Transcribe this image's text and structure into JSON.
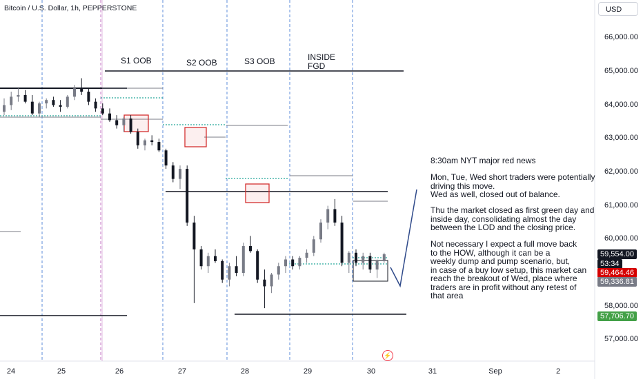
{
  "header": {
    "symbol": "Bitcoin / U.S. Dollar, 1h, PEPPERSTONE",
    "currency": "USD"
  },
  "colors": {
    "up": "#787b86",
    "down": "#131722",
    "accent_red": "#d32f2f",
    "dotted": "#26a69a",
    "vline": "#5b8bd8",
    "session": "#c679c6"
  },
  "price_axis": {
    "ticks": [
      "66,000.00",
      "65,000.00",
      "64,000.00",
      "63,000.00",
      "62,000.00",
      "61,000.00",
      "60,000.00",
      "58,000.00",
      "57,000.00"
    ],
    "tick_values": [
      66000,
      65000,
      64000,
      63000,
      62000,
      61000,
      60000,
      58000,
      57000
    ],
    "tags": [
      {
        "text": "59,554.00",
        "value": 59554,
        "bg": "#131722"
      },
      {
        "text": "53:34",
        "value": 59270,
        "bg": "#131722"
      },
      {
        "text": "59,464.46",
        "value": 59000,
        "bg": "#d50000"
      },
      {
        "text": "59,336.81",
        "value": 58730,
        "bg": "#787b86"
      },
      {
        "text": "57,706.70",
        "value": 57706.7,
        "bg": "#43a047"
      }
    ]
  },
  "time_axis": {
    "labels": [
      "24",
      "25",
      "26",
      "27",
      "28",
      "29",
      "30",
      "31",
      "Sep",
      "2"
    ]
  },
  "annotations": {
    "s1": "S1 OOB",
    "s2": "S2 OOB",
    "s3": "S3 OOB",
    "inside1": "INSIDE",
    "inside2": "FGD"
  },
  "note": {
    "p1": "8:30am NYT major red news",
    "p2": "Mon, Tue, Wed short traders were potentially\ndriving this move.\nWed as well, closed out of balance.",
    "p3": "Thu the market closed as first green day and\ninside day, consolidating almost the day\nbetween the LOD and the closing price.",
    "p4": "Not necessary I expect a full move back\nto the HOW, although it can be a\nweekly dump and pump scenario, but,\nin case of a buy low setup, this market can\nreach the breakout of Wed, place where\ntraders are in profit without any retest of\nthat area"
  },
  "chart_data": {
    "type": "candlestick",
    "title": "Bitcoin / U.S. Dollar, 1h, PEPPERSTONE",
    "ylim": [
      56500,
      67000
    ],
    "x_categories": [
      "24",
      "25",
      "26",
      "27",
      "28",
      "29",
      "30",
      "31",
      "Sep",
      "2"
    ],
    "series": [
      {
        "values": [
          [
            63800,
            64200,
            63700,
            64000
          ],
          [
            64000,
            64400,
            63850,
            64250
          ],
          [
            64250,
            64500,
            64100,
            64300
          ],
          [
            64300,
            64450,
            64050,
            64100
          ],
          [
            64100,
            64300,
            63700,
            63750
          ],
          [
            63750,
            64100,
            63650,
            64050
          ],
          [
            64050,
            64200,
            63900,
            64150
          ],
          [
            64150,
            64250,
            63950,
            64000
          ],
          [
            64000,
            64150,
            63800,
            63950
          ],
          [
            63950,
            64300,
            63900,
            64250
          ],
          [
            64250,
            64600,
            64150,
            64500
          ],
          [
            64500,
            64800,
            64300,
            64400
          ],
          [
            64400,
            64500,
            64000,
            64100
          ],
          [
            64100,
            64200,
            63800,
            63900
          ],
          [
            63900,
            64050,
            63700,
            63750
          ],
          [
            63750,
            63900,
            63500,
            63550
          ],
          [
            63550,
            63700,
            63300,
            63400
          ],
          [
            63400,
            63650,
            63200,
            63600
          ],
          [
            63600,
            63700,
            63150,
            63200
          ],
          [
            63200,
            63300,
            62700,
            62800
          ],
          [
            62800,
            63000,
            62650,
            62950
          ],
          [
            62950,
            63100,
            62800,
            62900
          ],
          [
            62900,
            63000,
            62600,
            62650
          ],
          [
            62650,
            62700,
            62100,
            62200
          ],
          [
            62200,
            62300,
            61700,
            61800
          ],
          [
            61800,
            62200,
            61500,
            62100
          ],
          [
            62100,
            62200,
            60400,
            60500
          ],
          [
            60500,
            60700,
            58100,
            59700
          ],
          [
            59700,
            59800,
            59100,
            59200
          ],
          [
            59200,
            59600,
            59000,
            59500
          ],
          [
            59500,
            59700,
            59300,
            59350
          ],
          [
            59350,
            59400,
            58700,
            58800
          ],
          [
            58800,
            59300,
            58600,
            59200
          ],
          [
            59200,
            59500,
            58900,
            59000
          ],
          [
            59000,
            59900,
            58900,
            59800
          ],
          [
            59800,
            60100,
            59600,
            59650
          ],
          [
            59650,
            59700,
            58700,
            58800
          ],
          [
            58800,
            59100,
            57950,
            58600
          ],
          [
            58600,
            59000,
            58400,
            58950
          ],
          [
            58950,
            59300,
            58800,
            59200
          ],
          [
            59200,
            59500,
            59000,
            59400
          ],
          [
            59400,
            59500,
            59100,
            59200
          ],
          [
            59200,
            59500,
            59100,
            59450
          ],
          [
            59450,
            59700,
            59300,
            59600
          ],
          [
            59600,
            60100,
            59500,
            60000
          ],
          [
            60000,
            60600,
            59900,
            60500
          ],
          [
            60500,
            61000,
            60300,
            60900
          ],
          [
            60900,
            61200,
            60400,
            60500
          ],
          [
            60500,
            60700,
            59200,
            59300
          ],
          [
            59300,
            59650,
            59000,
            59600
          ],
          [
            59600,
            59700,
            59200,
            59300
          ],
          [
            59300,
            59600,
            59100,
            59500
          ],
          [
            59500,
            59600,
            59000,
            59100
          ],
          [
            59100,
            59400,
            58850,
            59350
          ],
          [
            59350,
            59600,
            59300,
            59554
          ]
        ]
      }
    ]
  }
}
